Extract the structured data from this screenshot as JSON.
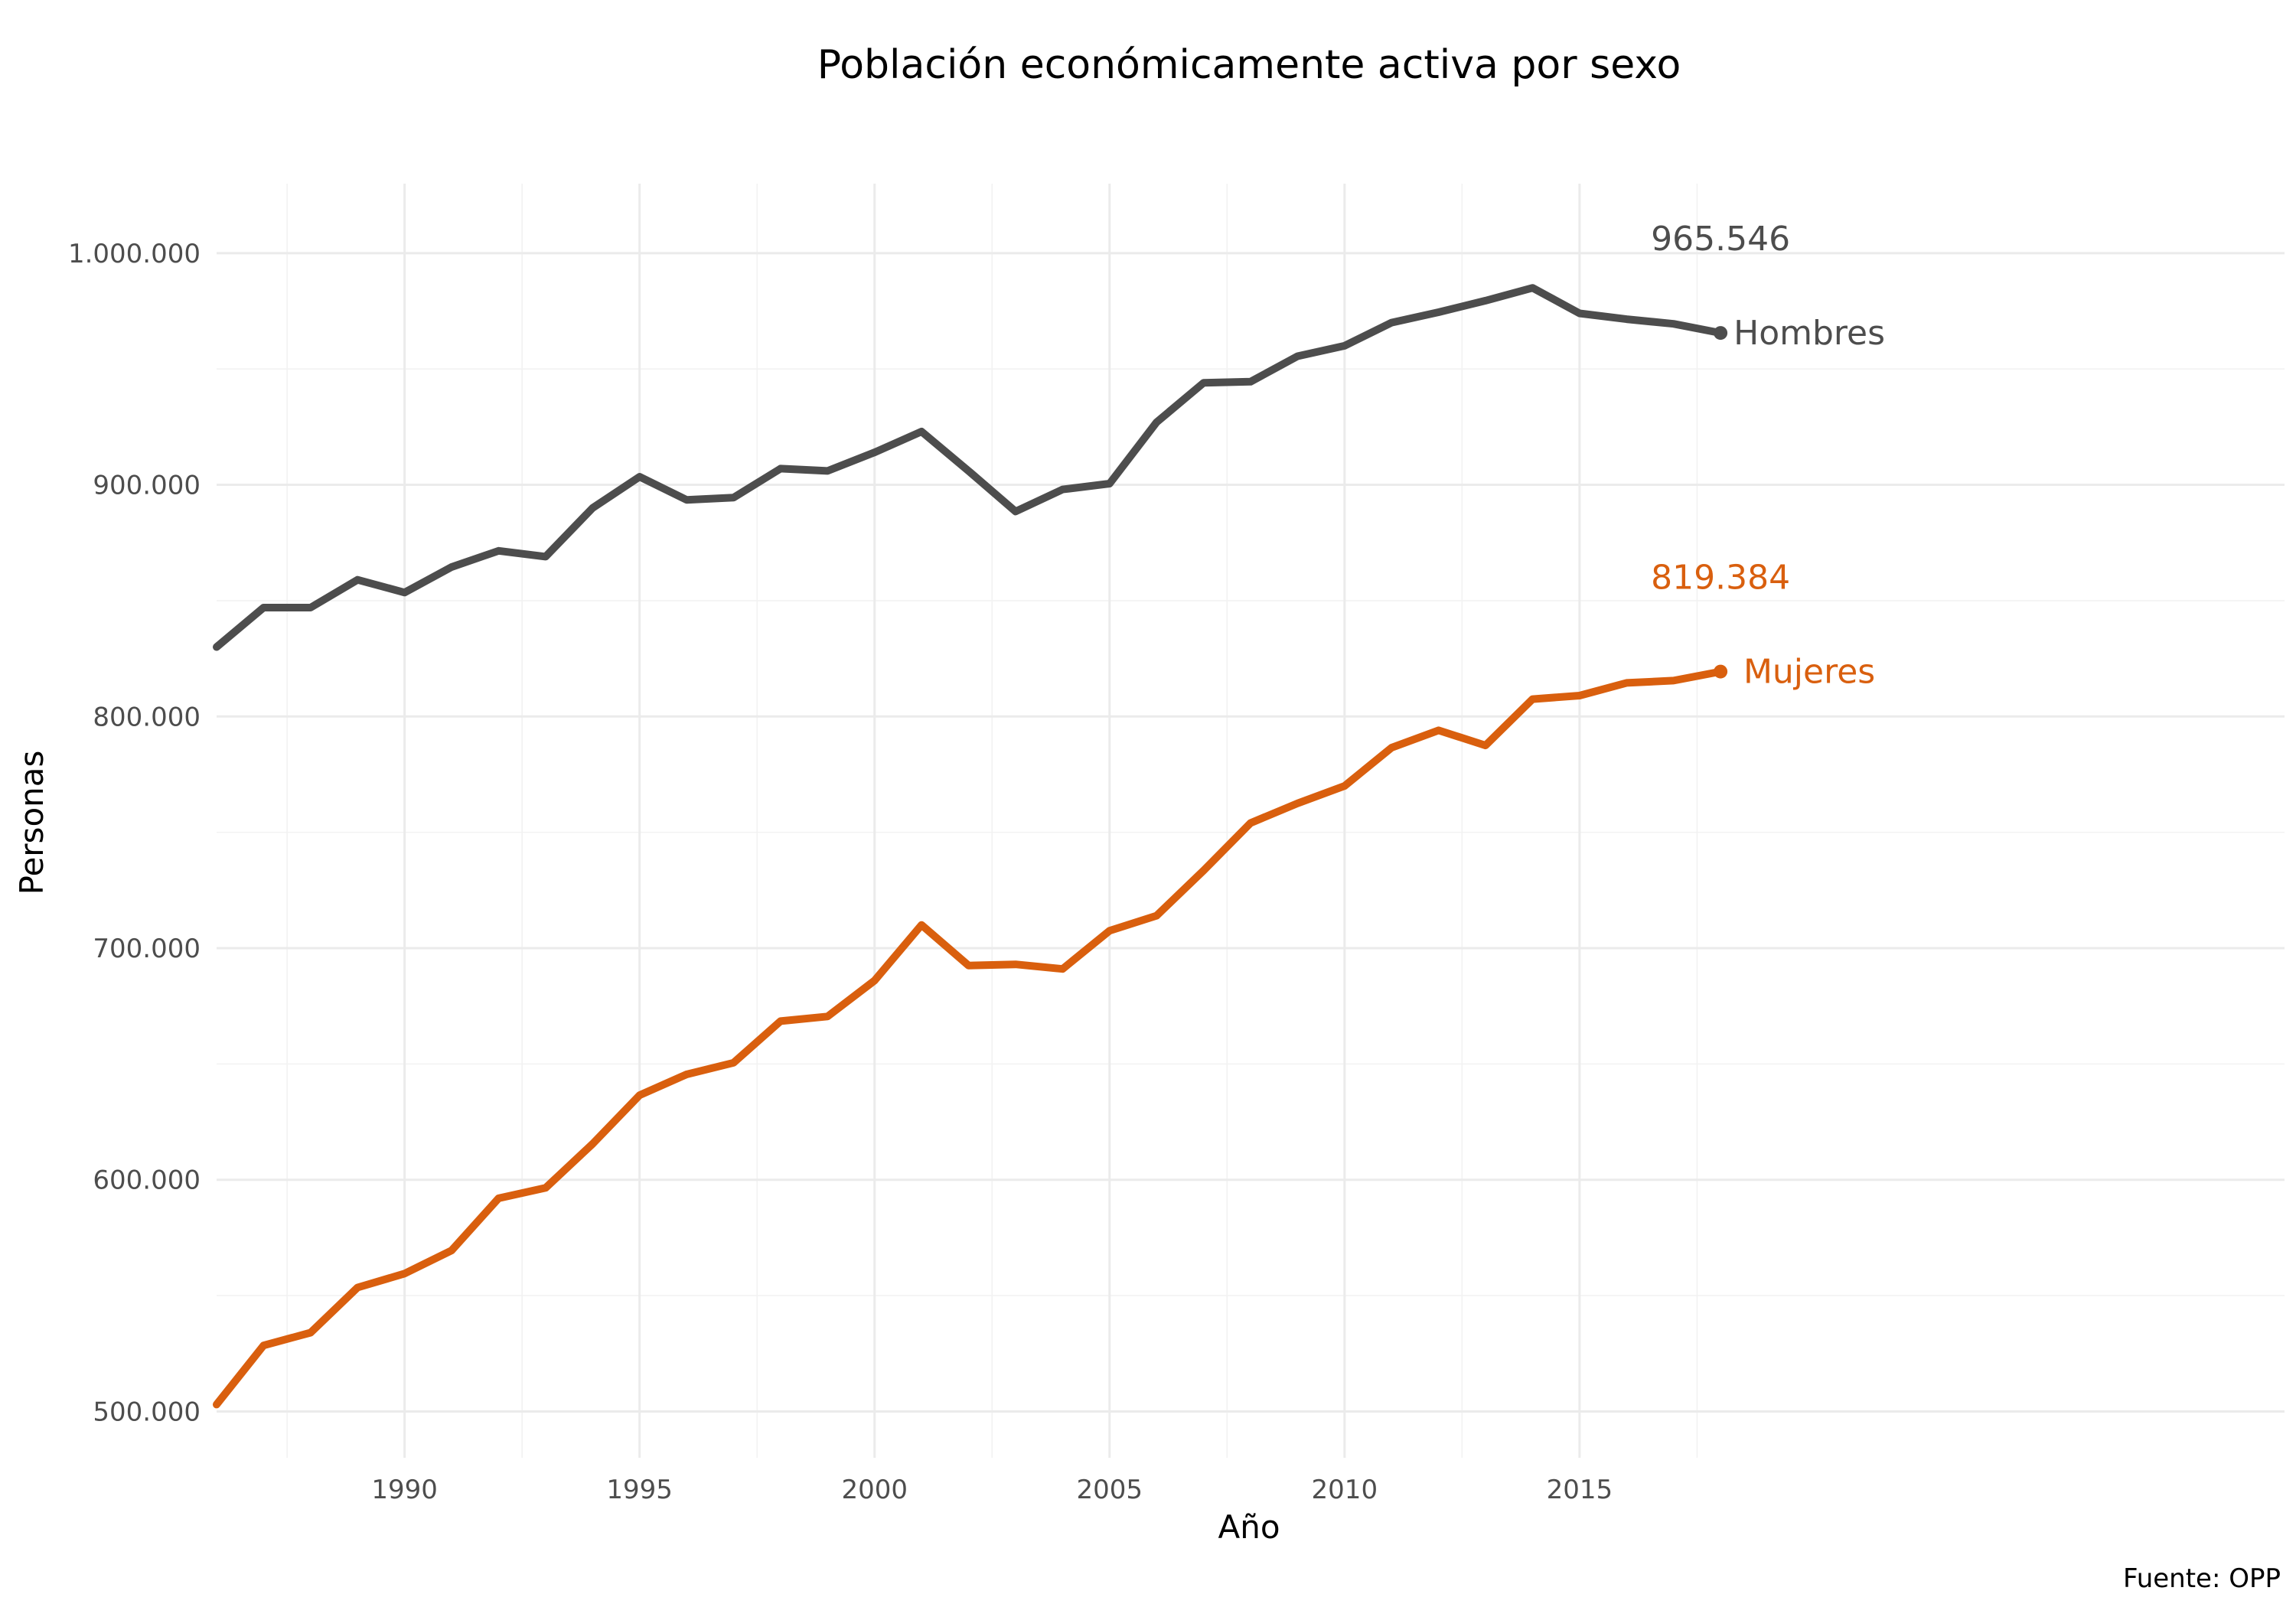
{
  "chart_data": {
    "type": "line",
    "title": "Población económicamente activa por sexo",
    "xlabel": "Año",
    "ylabel": "Personas",
    "caption": "Fuente: OPP",
    "xlim": [
      1986,
      2030
    ],
    "ylim": [
      480000,
      1030000
    ],
    "x_ticks": [
      1990,
      1995,
      2000,
      2005,
      2010,
      2015
    ],
    "y_ticks": [
      500000,
      600000,
      700000,
      800000,
      900000,
      1000000
    ],
    "y_tick_labels": [
      "500.000",
      "600.000",
      "700.000",
      "800.000",
      "900.000",
      "1.000.000"
    ],
    "grid": true,
    "legend": "none",
    "x": [
      1986,
      1987,
      1988,
      1989,
      1990,
      1991,
      1992,
      1993,
      1994,
      1995,
      1996,
      1997,
      1998,
      1999,
      2000,
      2001,
      2002,
      2003,
      2004,
      2005,
      2006,
      2007,
      2008,
      2009,
      2010,
      2011,
      2012,
      2013,
      2014,
      2015,
      2016,
      2017,
      2018
    ],
    "series": [
      {
        "name": "Hombres",
        "color": "#4d4d4d",
        "end_value_label": "965.546",
        "values": [
          830000,
          847000,
          847000,
          859000,
          853500,
          864500,
          871500,
          869000,
          890000,
          903500,
          893500,
          894500,
          907000,
          906000,
          914000,
          923000,
          906000,
          888500,
          898000,
          900500,
          927000,
          944000,
          944500,
          955500,
          960000,
          970000,
          974500,
          979500,
          985000,
          974000,
          971500,
          969500,
          965546
        ]
      },
      {
        "name": "Mujeres",
        "color": "#d95f0e",
        "end_value_label": "819.384",
        "values": [
          503000,
          528500,
          534000,
          553500,
          559500,
          569500,
          592000,
          596500,
          615500,
          636500,
          645500,
          650500,
          668500,
          670500,
          686000,
          710000,
          692500,
          693000,
          691000,
          707500,
          714000,
          733500,
          754000,
          762500,
          770000,
          786500,
          794000,
          787500,
          807500,
          809000,
          814500,
          815500,
          819384
        ]
      }
    ]
  }
}
